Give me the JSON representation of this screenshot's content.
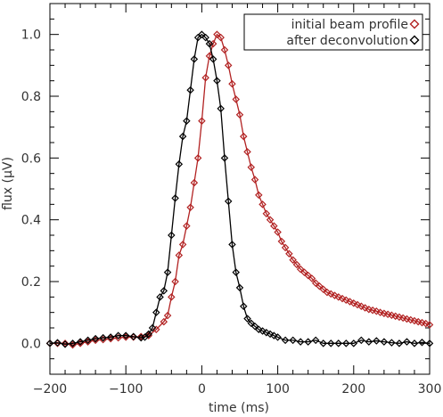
{
  "chart_data": {
    "type": "line",
    "title": "",
    "xlabel": "time (ms)",
    "ylabel": "flux (μV)",
    "xlim": [
      -200,
      300
    ],
    "ylim": [
      -0.1,
      1.1
    ],
    "x_ticks": [
      -200,
      -100,
      0,
      100,
      200,
      300
    ],
    "y_ticks": [
      0.0,
      0.2,
      0.4,
      0.6,
      0.8,
      1.0
    ],
    "x_tick_labels": [
      "−200",
      "−100",
      "0",
      "100",
      "200",
      "300"
    ],
    "y_tick_labels": [
      "0.0",
      "0.2",
      "0.4",
      "0.6",
      "0.8",
      "1.0"
    ],
    "legend_position": "top-right",
    "grid": false,
    "marker": "diamond",
    "series": [
      {
        "name": "initial beam profile",
        "color": "#b22222",
        "x": [
          -200,
          -190,
          -180,
          -170,
          -160,
          -150,
          -140,
          -130,
          -120,
          -110,
          -100,
          -90,
          -80,
          -70,
          -60,
          -50,
          -45,
          -40,
          -35,
          -30,
          -25,
          -20,
          -15,
          -10,
          -5,
          0,
          5,
          10,
          15,
          20,
          25,
          30,
          35,
          40,
          45,
          50,
          55,
          60,
          65,
          70,
          75,
          80,
          85,
          90,
          95,
          100,
          105,
          110,
          115,
          120,
          125,
          130,
          135,
          140,
          145,
          150,
          155,
          160,
          165,
          170,
          175,
          180,
          185,
          190,
          195,
          200,
          205,
          210,
          215,
          220,
          225,
          230,
          235,
          240,
          245,
          250,
          255,
          260,
          265,
          270,
          275,
          280,
          285,
          290,
          295,
          300
        ],
        "y": [
          0.0,
          0.0,
          0.0,
          -0.005,
          0.0,
          0.005,
          0.01,
          0.012,
          0.015,
          0.018,
          0.02,
          0.02,
          0.022,
          0.025,
          0.045,
          0.07,
          0.09,
          0.15,
          0.2,
          0.285,
          0.32,
          0.38,
          0.44,
          0.52,
          0.6,
          0.72,
          0.86,
          0.93,
          0.97,
          1.0,
          0.99,
          0.95,
          0.9,
          0.84,
          0.79,
          0.74,
          0.67,
          0.62,
          0.57,
          0.53,
          0.48,
          0.45,
          0.42,
          0.4,
          0.38,
          0.36,
          0.33,
          0.31,
          0.29,
          0.27,
          0.255,
          0.24,
          0.23,
          0.22,
          0.21,
          0.195,
          0.185,
          0.175,
          0.165,
          0.16,
          0.155,
          0.15,
          0.145,
          0.14,
          0.135,
          0.13,
          0.125,
          0.12,
          0.115,
          0.11,
          0.107,
          0.104,
          0.1,
          0.097,
          0.094,
          0.091,
          0.088,
          0.085,
          0.082,
          0.079,
          0.076,
          0.073,
          0.07,
          0.067,
          0.064,
          0.06
        ]
      },
      {
        "name": "after deconvolution",
        "color": "#000000",
        "x": [
          -200,
          -190,
          -180,
          -170,
          -160,
          -150,
          -140,
          -130,
          -120,
          -110,
          -100,
          -90,
          -80,
          -75,
          -70,
          -65,
          -60,
          -55,
          -50,
          -45,
          -40,
          -35,
          -30,
          -25,
          -20,
          -15,
          -10,
          -5,
          0,
          5,
          10,
          15,
          20,
          25,
          30,
          35,
          40,
          45,
          50,
          55,
          60,
          65,
          70,
          75,
          80,
          85,
          90,
          95,
          100,
          110,
          120,
          130,
          140,
          150,
          160,
          170,
          180,
          190,
          200,
          210,
          220,
          230,
          240,
          250,
          260,
          270,
          280,
          290,
          300
        ],
        "y": [
          0.0,
          0.002,
          -0.003,
          0.0,
          0.005,
          0.01,
          0.015,
          0.018,
          0.02,
          0.025,
          0.025,
          0.022,
          0.018,
          0.02,
          0.03,
          0.05,
          0.1,
          0.15,
          0.17,
          0.23,
          0.35,
          0.47,
          0.58,
          0.67,
          0.72,
          0.82,
          0.92,
          0.99,
          1.0,
          0.99,
          0.97,
          0.92,
          0.85,
          0.76,
          0.6,
          0.46,
          0.32,
          0.23,
          0.18,
          0.12,
          0.08,
          0.065,
          0.055,
          0.045,
          0.04,
          0.035,
          0.03,
          0.025,
          0.02,
          0.01,
          0.01,
          0.005,
          0.005,
          0.01,
          0.0,
          0.0,
          0.0,
          0.0,
          0.0,
          0.01,
          0.005,
          0.008,
          0.005,
          0.002,
          0.0,
          0.005,
          0.0,
          0.003,
          0.0
        ]
      }
    ]
  }
}
